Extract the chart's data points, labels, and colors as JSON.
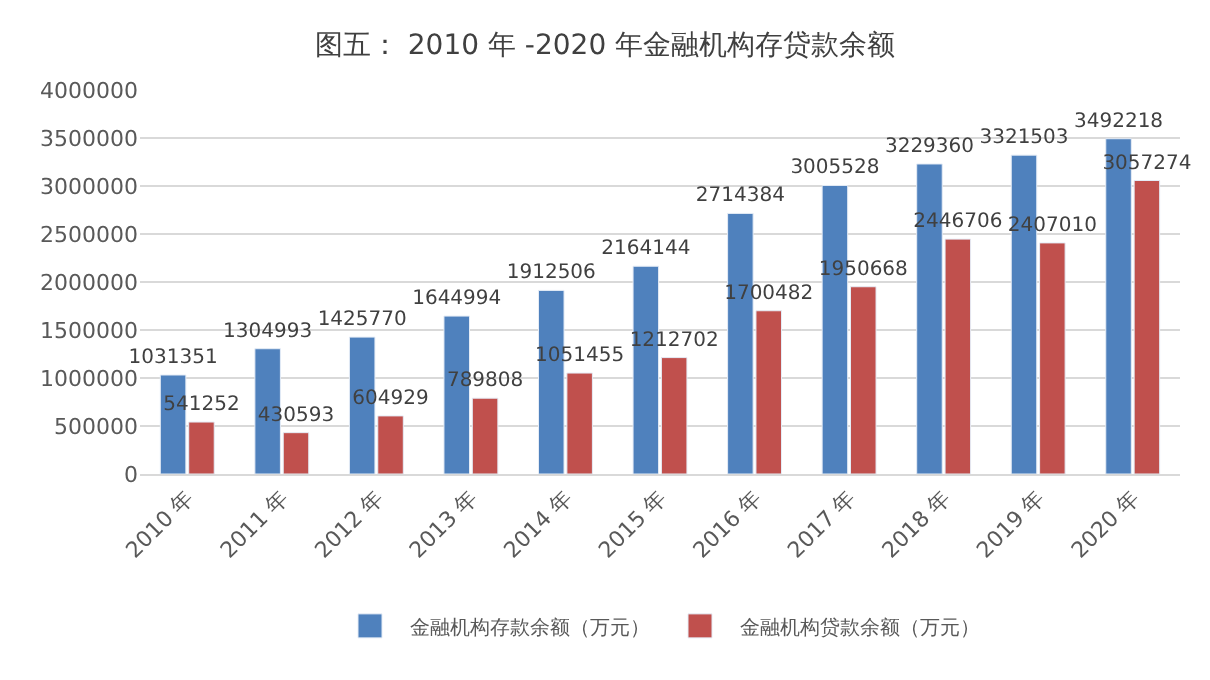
{
  "chart_data": {
    "type": "bar",
    "title": "图五： 2010 年 -2020 年金融机构存贷款余额",
    "categories": [
      "2010 年",
      "2011 年",
      "2012 年",
      "2013 年",
      "2014 年",
      "2015 年",
      "2016 年",
      "2017 年",
      "2018 年",
      "2019 年",
      "2020 年"
    ],
    "series": [
      {
        "name": "金融机构存款余额（万元）",
        "color": "#4f81bd",
        "values": [
          1031351,
          1304993,
          1425770,
          1644994,
          1912506,
          2164144,
          2714384,
          3005528,
          3229360,
          3321503,
          3492218
        ]
      },
      {
        "name": "金融机构贷款余额（万元）",
        "color": "#c0504d",
        "values": [
          541252,
          430593,
          604929,
          789808,
          1051455,
          1212702,
          1700482,
          1950668,
          2446706,
          2407010,
          3057274
        ]
      }
    ],
    "ylim": [
      0,
      4000000
    ],
    "yticks": [
      0,
      500000,
      1000000,
      1500000,
      2000000,
      2500000,
      3000000,
      3500000,
      4000000
    ],
    "grid": "y",
    "legend": "bottom",
    "data_labels": true
  }
}
